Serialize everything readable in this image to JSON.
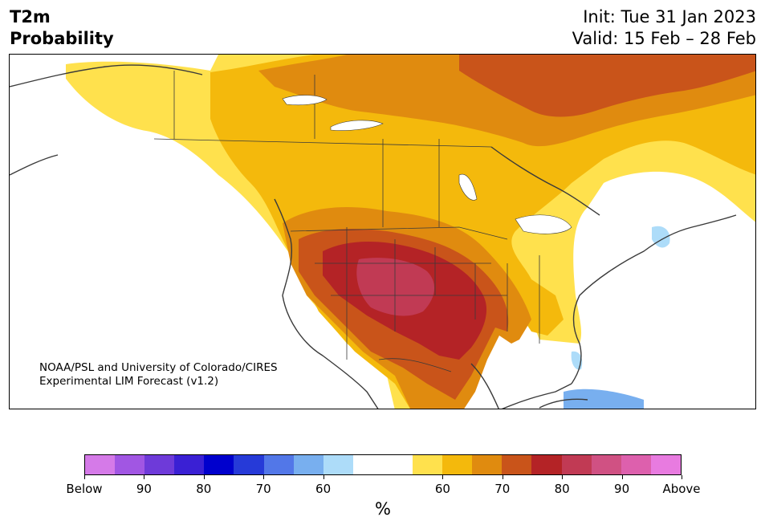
{
  "header": {
    "variable": "T2m\nProbability",
    "init": "Init: Tue 31 Jan 2023",
    "valid": "Valid: 15 Feb – 28 Feb"
  },
  "credit": {
    "line1": "NOAA/PSL and University of Colorado/CIRES",
    "line2": "Experimental LIM Forecast (v1.2)"
  },
  "colorbar": {
    "colors": [
      "#d57ae8",
      "#a156e3",
      "#6e3ad9",
      "#3a20d4",
      "#0000cd",
      "#263ad8",
      "#5277e8",
      "#78afef",
      "#addcf9",
      "#ffffff",
      "#ffffff",
      "#ffe14d",
      "#f4b90c",
      "#e08b0f",
      "#c9541a",
      "#b42326",
      "#c13a54",
      "#d05183",
      "#dd60ad",
      "#e87be0"
    ],
    "ticks": [
      "Below",
      "90",
      "80",
      "70",
      "60",
      "60",
      "70",
      "80",
      "90",
      "Above"
    ],
    "unit": "%"
  },
  "map": {
    "land_color": "#ffffff",
    "ocean_color": "#ffffff",
    "border_color": "#3a3a3a"
  }
}
